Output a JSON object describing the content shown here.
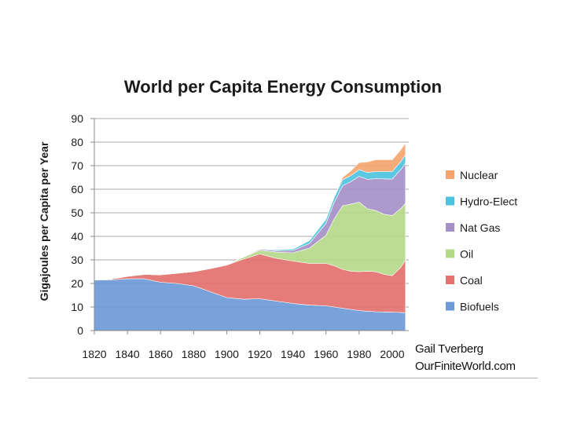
{
  "chart_data": {
    "type": "area",
    "stacked": true,
    "title": "World per Capita Energy Consumption",
    "ylabel": "Gigajoules per Capita per Year",
    "xlabel": "",
    "xlim": [
      1820,
      2010
    ],
    "ylim": [
      0,
      90
    ],
    "yticks": [
      0,
      10,
      20,
      30,
      40,
      50,
      60,
      70,
      80,
      90
    ],
    "xticks": [
      1820,
      1840,
      1860,
      1880,
      1900,
      1920,
      1940,
      1960,
      1980,
      2000
    ],
    "grid": true,
    "legend_position": "right",
    "x": [
      1820,
      1830,
      1840,
      1850,
      1860,
      1870,
      1880,
      1890,
      1900,
      1910,
      1920,
      1930,
      1940,
      1950,
      1960,
      1965,
      1970,
      1975,
      1980,
      1985,
      1990,
      1995,
      2000,
      2005,
      2008
    ],
    "series": [
      {
        "name": "Biofuels",
        "color": "#6c9ad6",
        "values": [
          21.5,
          21.5,
          22,
          22,
          20.5,
          20,
          19,
          16.5,
          14,
          13.3,
          13.5,
          12.5,
          11.5,
          10.8,
          10.5,
          10,
          9.5,
          9,
          8.5,
          8.2,
          8,
          7.9,
          7.8,
          7.7,
          7.6
        ]
      },
      {
        "name": "Coal",
        "color": "#e3716e",
        "values": [
          0,
          0.3,
          1,
          1.8,
          3.2,
          4.3,
          6,
          9.8,
          13.8,
          17,
          19,
          18.2,
          18,
          17.7,
          18,
          17.5,
          16.5,
          16.2,
          16.5,
          17,
          17,
          16,
          15.5,
          19,
          22.4
        ]
      },
      {
        "name": "Oil",
        "color": "#b5d98a",
        "values": [
          0,
          0,
          0,
          0,
          0,
          0,
          0,
          0,
          0,
          0.8,
          1.6,
          2.6,
          3.5,
          6.5,
          12,
          20,
          27,
          28.5,
          29.5,
          26.5,
          26,
          25.5,
          25.5,
          25,
          24
        ]
      },
      {
        "name": "Nat Gas",
        "color": "#a690c8",
        "values": [
          0,
          0,
          0,
          0,
          0,
          0,
          0,
          0,
          0,
          0.2,
          0.4,
          0.6,
          1,
          2,
          5,
          7,
          8.5,
          9.5,
          11,
          12.5,
          13.5,
          15,
          15.5,
          16.5,
          17
        ]
      },
      {
        "name": "Hydro-Elect",
        "color": "#4fc3de",
        "values": [
          0,
          0,
          0,
          0,
          0,
          0,
          0,
          0,
          0,
          0.1,
          0.2,
          0.4,
          0.6,
          1.2,
          1.8,
          2.2,
          2.5,
          2.6,
          2.8,
          2.9,
          3,
          3.1,
          3.2,
          3.4,
          3.6
        ]
      },
      {
        "name": "Nuclear",
        "color": "#f5a470",
        "values": [
          0,
          0,
          0,
          0,
          0,
          0,
          0,
          0,
          0,
          0,
          0,
          0,
          0,
          0,
          0,
          0.1,
          1,
          2,
          3,
          4.5,
          5,
          5,
          5,
          5,
          5
        ]
      }
    ]
  },
  "credit": {
    "line1": "Gail Tverberg",
    "line2": "OurFiniteWorld.com"
  }
}
